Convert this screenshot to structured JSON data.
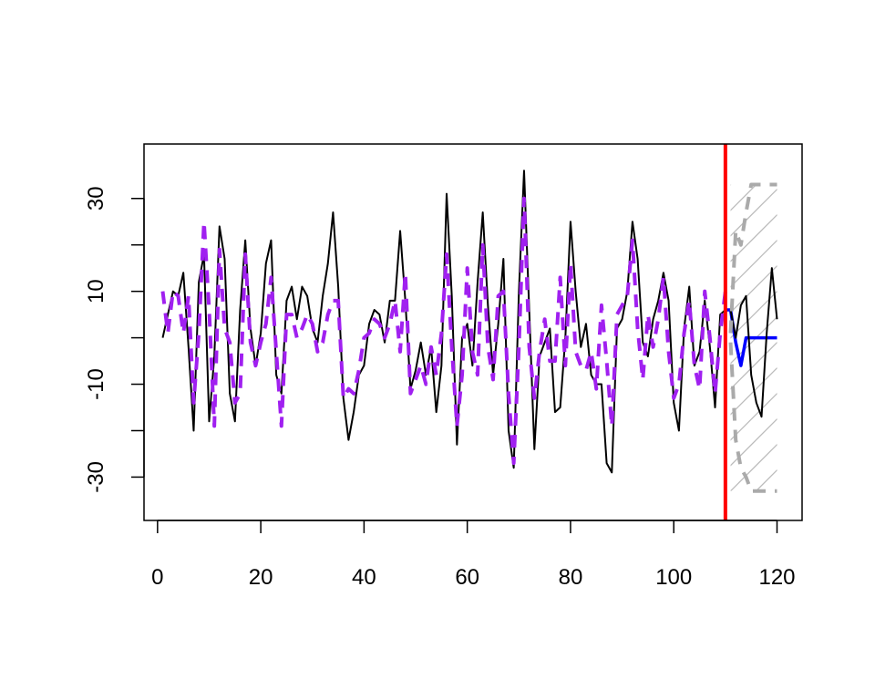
{
  "chart_data": {
    "type": "line",
    "xlim": [
      1,
      120
    ],
    "ylim": [
      -36,
      38
    ],
    "x_ticks": [
      0,
      20,
      40,
      60,
      80,
      100,
      120
    ],
    "x_tick_labels": [
      "0",
      "20",
      "40",
      "60",
      "80",
      "100",
      "120"
    ],
    "y_ticks": [
      -30,
      -10,
      10,
      30
    ],
    "y_tick_labels": [
      "-30",
      "-10",
      "10",
      "30"
    ],
    "title": "",
    "xlabel": "",
    "ylabel": "",
    "vline": {
      "x": 110,
      "color": "#ff0000"
    },
    "forecast_band": {
      "x_start": 111,
      "x_end": 120,
      "lower": -33,
      "upper": 33,
      "hatch_color": "#bbbbbb",
      "edge_color": "#aaaaaa"
    },
    "series": [
      {
        "role": "observed",
        "color": "#000000",
        "style": "solid",
        "x_start": 1,
        "values": [
          0,
          5,
          10,
          9,
          14,
          -2,
          -20,
          12,
          18,
          -18,
          -4,
          24,
          17,
          -12,
          -18,
          6,
          21,
          2,
          -6,
          1,
          16,
          21,
          -8,
          -12,
          8,
          11,
          4,
          11,
          9,
          2,
          -1,
          9,
          16,
          27,
          11,
          -13,
          -22,
          -16,
          -8,
          -6,
          3,
          6,
          5,
          -1,
          8,
          8,
          23,
          8,
          -11,
          -7,
          -1,
          -8,
          -2,
          -16,
          -6,
          31,
          9,
          -23,
          0,
          3,
          -6,
          12,
          27,
          7,
          -8,
          3,
          17,
          -20,
          -28,
          10,
          36,
          6,
          -24,
          -4,
          -1,
          2,
          -16,
          -15,
          0,
          25,
          10,
          -2,
          3,
          -8,
          -10,
          -10,
          -27,
          -29,
          2,
          4,
          10,
          25,
          17,
          -1,
          -4,
          4,
          8,
          14,
          8,
          -14,
          -20,
          2,
          11,
          -6,
          -3,
          8,
          -2,
          -15,
          5,
          6
        ]
      },
      {
        "role": "fitted",
        "color": "#a020f0",
        "style": "dashed",
        "x_start": 1,
        "values": [
          10,
          1,
          10,
          9,
          1,
          9,
          -14,
          1,
          25,
          6,
          -19,
          19,
          2,
          -1,
          -14,
          -12,
          18,
          -1,
          -6,
          -1,
          3,
          13,
          -3,
          -19,
          5,
          5,
          0,
          2,
          5,
          3,
          -3,
          -1,
          5,
          8,
          8,
          -13,
          -11,
          -12,
          -7,
          0,
          1,
          4,
          3,
          0,
          3,
          8,
          -3,
          14,
          -12,
          -9,
          -6,
          -10,
          -2,
          -8,
          1,
          18,
          -2,
          -19,
          -8,
          15,
          -3,
          -8,
          20,
          -2,
          -9,
          9,
          10,
          -12,
          -27,
          -2,
          30,
          -2,
          -13,
          -3,
          4,
          -5,
          -5,
          13,
          -6,
          16,
          -3,
          -6,
          -7,
          -3,
          -11,
          7,
          -5,
          -19,
          5,
          7,
          9,
          21,
          2,
          -9,
          5,
          -2,
          4,
          13,
          -3,
          -13,
          -10,
          1,
          8,
          -6,
          -11,
          10,
          0,
          -12,
          1,
          10
        ]
      },
      {
        "role": "forecast",
        "color": "#0000ff",
        "style": "solid",
        "x_start": 110,
        "values": [
          6,
          6,
          -1,
          -6,
          0,
          0,
          0,
          0,
          0,
          0,
          0
        ]
      },
      {
        "role": "actual-future",
        "color": "#000000",
        "style": "solid",
        "x_start": 111,
        "values": [
          6,
          0,
          7,
          9,
          -8,
          -14,
          -17,
          1,
          15,
          4
        ]
      },
      {
        "role": "interval-upper",
        "color": "#aaaaaa",
        "style": "dashed",
        "x_start": 111,
        "values": [
          1,
          23,
          20,
          27,
          33,
          33,
          33,
          33,
          33,
          33
        ]
      },
      {
        "role": "interval-lower",
        "color": "#aaaaaa",
        "style": "dashed",
        "x_start": 111,
        "values": [
          -1,
          -22,
          -28,
          -30,
          -33,
          -33,
          -33,
          -33,
          -33,
          -33
        ]
      }
    ]
  }
}
